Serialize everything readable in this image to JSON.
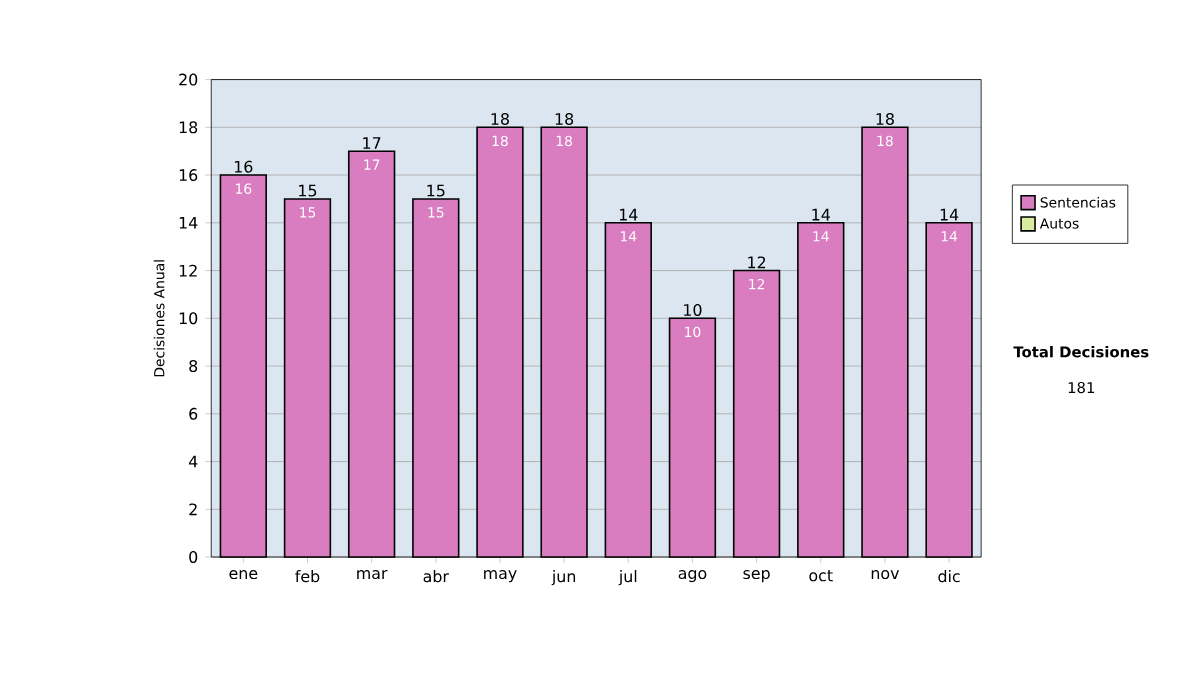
{
  "chart_data": {
    "type": "bar",
    "ylabel": "Decisiones Anual",
    "categories": [
      "ene",
      "feb",
      "mar",
      "abr",
      "may",
      "jun",
      "jul",
      "ago",
      "sep",
      "oct",
      "nov",
      "dic"
    ],
    "series": [
      {
        "name": "Sentencias",
        "color": "#d97cc0",
        "values": [
          16,
          15,
          17,
          15,
          18,
          18,
          14,
          10,
          12,
          14,
          18,
          14
        ],
        "value_labels": [
          "16",
          "15",
          "17",
          "15",
          "18",
          "18",
          "14",
          "10",
          "12",
          "14",
          "18",
          "14"
        ]
      },
      {
        "name": "Autos",
        "color": "#d8eca0",
        "values": [
          0,
          0,
          0,
          0,
          0,
          0,
          0,
          0,
          0,
          0,
          0,
          0
        ]
      }
    ],
    "stacked": true,
    "totals": [
      "16",
      "15",
      "17",
      "15",
      "18",
      "18",
      "14",
      "10",
      "12",
      "14",
      "18",
      "14"
    ],
    "ylim": [
      0,
      20
    ],
    "yticks": [
      0,
      2,
      4,
      6,
      8,
      10,
      12,
      14,
      16,
      18,
      20
    ],
    "grid": "y",
    "legend": "right",
    "annotations": [
      "Total Decisiones",
      "181"
    ]
  }
}
